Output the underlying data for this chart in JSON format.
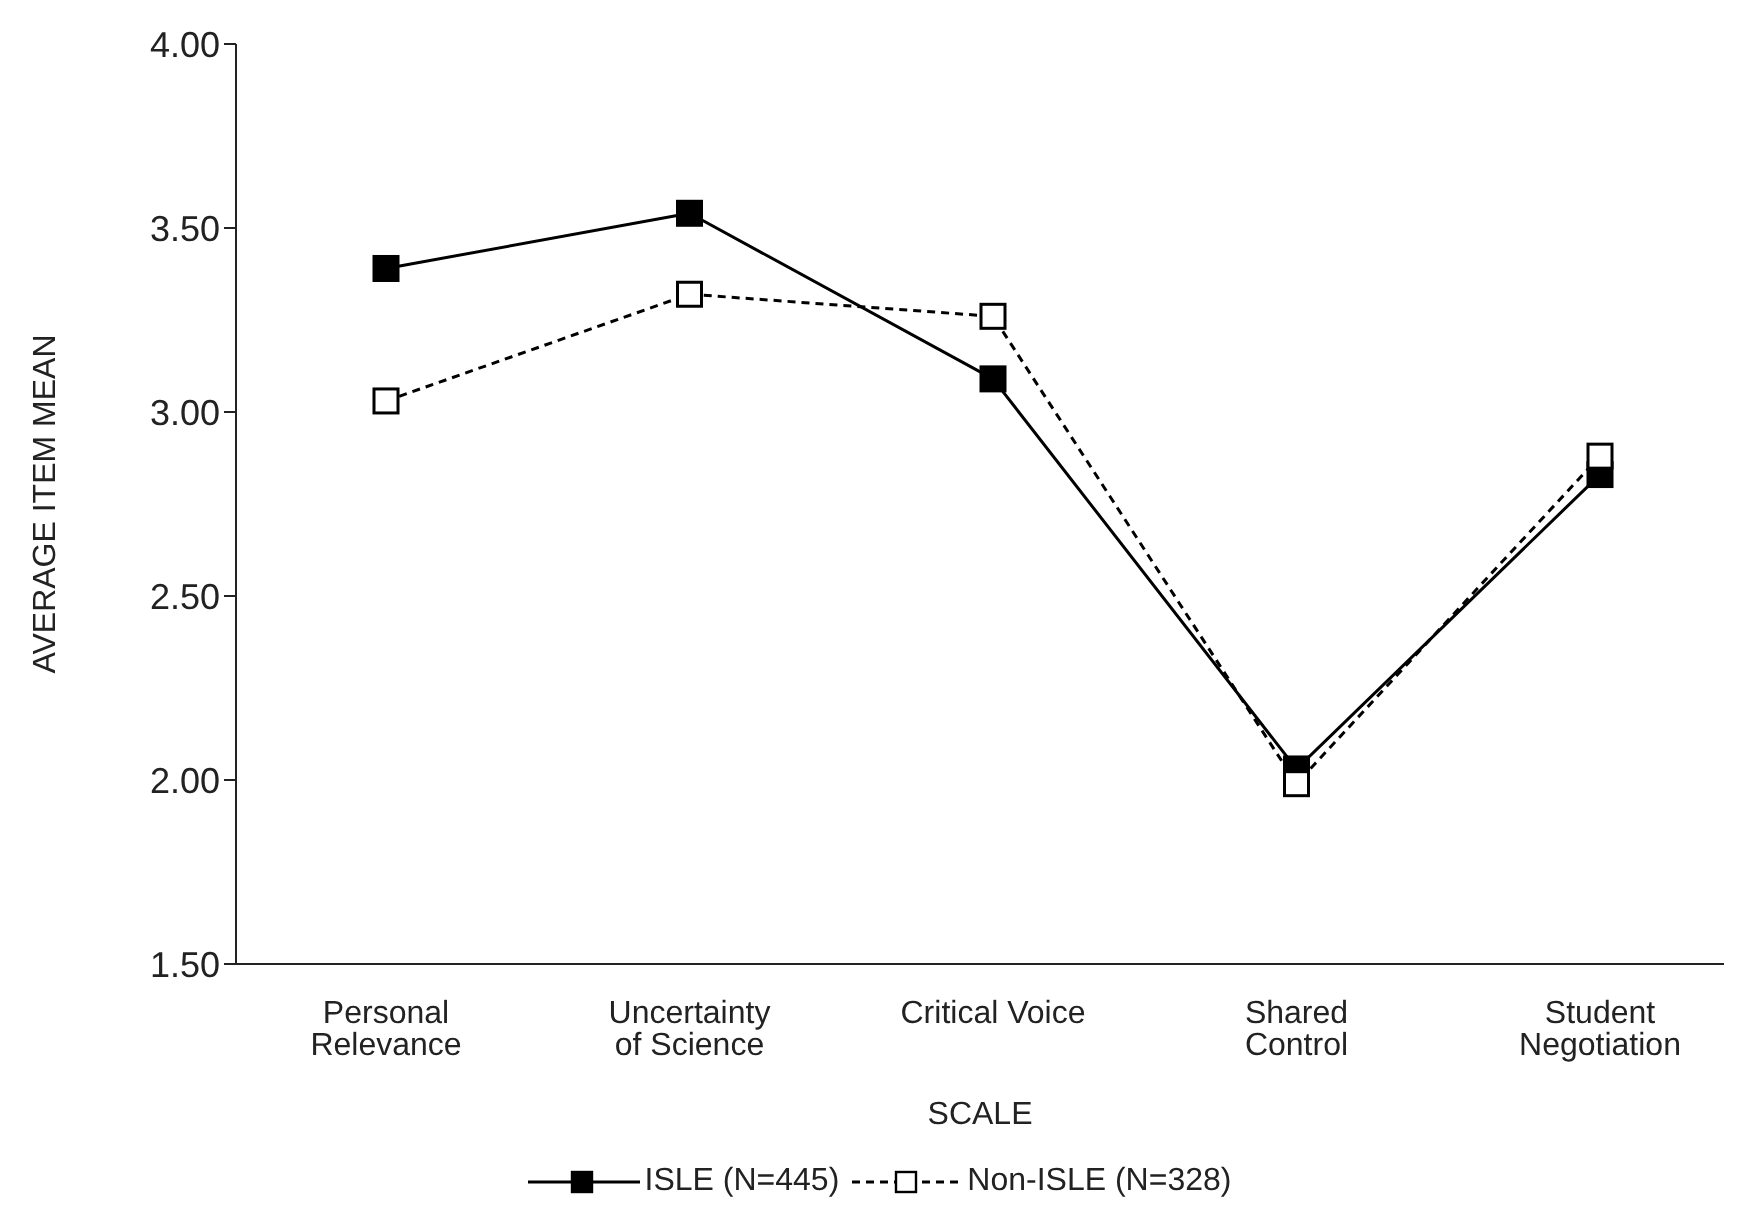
{
  "chart_data": {
    "type": "line",
    "xlabel": "SCALE",
    "ylabel": "AVERAGE ITEM MEAN",
    "categories": [
      "Personal Relevance",
      "Uncertainty of Science",
      "Critical Voice",
      "Shared Control",
      "Student Negotiation"
    ],
    "series": [
      {
        "name": "ISLE (N=445)",
        "color": "#000000",
        "line_style": "solid",
        "values": [
          3.39,
          3.54,
          3.09,
          2.03,
          2.83
        ]
      },
      {
        "name": "Non-ISLE (N=328)",
        "color": "#000000",
        "line_style": "dashed",
        "values": [
          3.03,
          3.32,
          3.26,
          1.99,
          2.88
        ]
      }
    ],
    "ylim": [
      1.5,
      4.0
    ],
    "yticks": [
      {
        "value": 1.5,
        "label": "1.50"
      },
      {
        "value": 2.0,
        "label": "2.00"
      },
      {
        "value": 2.5,
        "label": "2.50"
      },
      {
        "value": 3.0,
        "label": "3.00"
      },
      {
        "value": 3.5,
        "label": "3.50"
      },
      {
        "value": 4.0,
        "label": "4.00"
      }
    ],
    "grid": false,
    "legend": "bottom",
    "marker": "square"
  }
}
